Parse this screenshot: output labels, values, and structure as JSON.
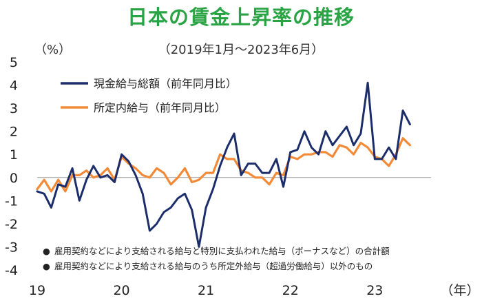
{
  "chart_data": {
    "type": "line",
    "title": "日本の賃金上昇率の推移",
    "subtitle": "（2019年1月～2023年6月）",
    "ylabel": "（%）",
    "xlabel": "（年）",
    "ylim": [
      -4,
      5
    ],
    "yticks": [
      "5",
      "4",
      "3",
      "2",
      "1",
      "0",
      "-1",
      "-2",
      "-3",
      "-4"
    ],
    "x_range": [
      0,
      56
    ],
    "x_tick_positions": [
      0,
      12,
      24,
      36,
      48
    ],
    "x_tick_labels": [
      "19",
      "20",
      "21",
      "22",
      "23"
    ],
    "series": [
      {
        "name": "現金給与総額（前年同月比）",
        "color": "#1c2d6b",
        "values": [
          -0.6,
          -0.7,
          -1.3,
          -0.3,
          -0.4,
          0.4,
          -1.0,
          -0.1,
          0.5,
          0.0,
          0.1,
          -0.2,
          1.0,
          0.7,
          0.1,
          -0.7,
          -2.3,
          -2.0,
          -1.5,
          -1.3,
          -0.9,
          -0.7,
          -1.4,
          -3.0,
          -1.3,
          -0.5,
          0.5,
          1.3,
          1.9,
          0.1,
          0.6,
          0.6,
          0.2,
          0.2,
          0.8,
          -0.4,
          1.1,
          1.2,
          2.0,
          1.3,
          1.0,
          2.0,
          1.4,
          1.8,
          2.2,
          1.4,
          1.9,
          4.1,
          0.8,
          0.8,
          1.3,
          0.8,
          2.9,
          2.3
        ],
        "legend_marker": "●",
        "note": "雇用契約などにより支給される給与と特別に支払われた給与（ボーナスなど）の合計額"
      },
      {
        "name": "所定内給与（前年同月比）",
        "color": "#f28a37",
        "values": [
          -0.5,
          -0.1,
          -0.6,
          -0.1,
          -0.6,
          0.1,
          0.1,
          0.3,
          0.0,
          0.1,
          0.4,
          -0.1,
          0.9,
          0.6,
          0.4,
          0.1,
          0.0,
          0.4,
          0.2,
          -0.3,
          0.0,
          0.4,
          -0.2,
          -0.1,
          0.2,
          0.2,
          1.0,
          0.8,
          0.8,
          0.3,
          0.2,
          0.0,
          0.0,
          -0.3,
          0.2,
          0.1,
          0.9,
          0.8,
          1.0,
          1.0,
          1.1,
          1.1,
          0.9,
          1.4,
          1.3,
          1.0,
          1.5,
          1.3,
          0.9,
          0.8,
          0.5,
          1.0,
          1.7,
          1.4
        ],
        "legend_marker": "●",
        "note": "雇用契約などにより支給される給与のうち所定外給与（超過労働給与）以外のもの"
      }
    ]
  }
}
